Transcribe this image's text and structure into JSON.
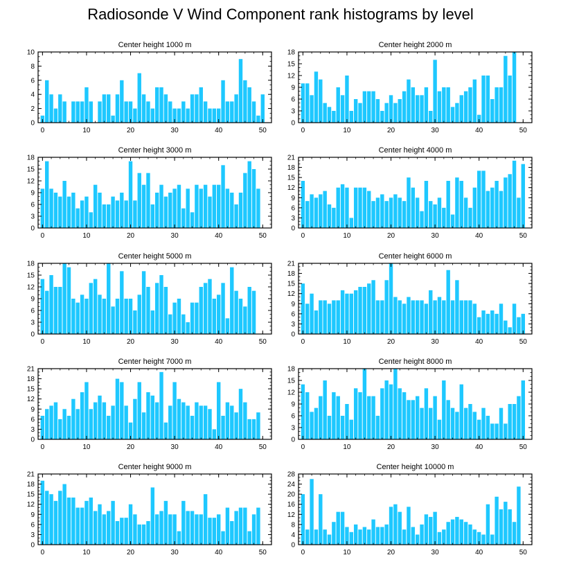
{
  "title": "Radiosonde V Wind Component rank histograms by level",
  "bar_color": "#1ec8ff",
  "chart_data": [
    {
      "type": "bar",
      "title": "Center height 1000 m",
      "xlim": [
        -1,
        52
      ],
      "ylim": [
        0,
        10
      ],
      "yticks": [
        0,
        2,
        4,
        6,
        8,
        10
      ],
      "xticks": [
        0,
        10,
        20,
        30,
        40,
        50
      ],
      "values": [
        1,
        6,
        4,
        2,
        4,
        3,
        0,
        3,
        3,
        3,
        5,
        3,
        0,
        3,
        4,
        4,
        1,
        4,
        6,
        3,
        3,
        2,
        7,
        4,
        3,
        2,
        5,
        5,
        4,
        3,
        2,
        2,
        3,
        2,
        4,
        4,
        5,
        3,
        2,
        2,
        2,
        6,
        3,
        3,
        4,
        9,
        6,
        5,
        3,
        1,
        4
      ]
    },
    {
      "type": "bar",
      "title": "Center height 2000 m",
      "xlim": [
        -1,
        52
      ],
      "ylim": [
        0,
        18
      ],
      "yticks": [
        0,
        3,
        6,
        9,
        12,
        15,
        18
      ],
      "xticks": [
        0,
        10,
        20,
        30,
        40,
        50
      ],
      "values": [
        10,
        10,
        7,
        13,
        11,
        5,
        4,
        3,
        9,
        7,
        12,
        3,
        6,
        5,
        8,
        8,
        8,
        6,
        3,
        5,
        7,
        5,
        6,
        8,
        11,
        9,
        7,
        7,
        9,
        3,
        16,
        8,
        9,
        9,
        4,
        5,
        7,
        8,
        9,
        11,
        2,
        12,
        12,
        6,
        9,
        9,
        17,
        12,
        18
      ]
    },
    {
      "type": "bar",
      "title": "Center height 3000 m",
      "xlim": [
        -1,
        52
      ],
      "ylim": [
        0,
        18
      ],
      "yticks": [
        0,
        3,
        6,
        9,
        12,
        15,
        18
      ],
      "xticks": [
        0,
        10,
        20,
        30,
        40,
        50
      ],
      "values": [
        10,
        17,
        10,
        9,
        8,
        12,
        8,
        9,
        5,
        7,
        8,
        4,
        11,
        9,
        6,
        6,
        8,
        7,
        9,
        7,
        17,
        7,
        14,
        11,
        14,
        6,
        9,
        11,
        8,
        9,
        10,
        11,
        5,
        10,
        4,
        11,
        10,
        11,
        8,
        11,
        11,
        16,
        10,
        9,
        6,
        9,
        14,
        17,
        15,
        10
      ]
    },
    {
      "type": "bar",
      "title": "Center height 4000 m",
      "xlim": [
        -1,
        52
      ],
      "ylim": [
        0,
        21
      ],
      "yticks": [
        0,
        3,
        6,
        9,
        12,
        15,
        18,
        21
      ],
      "xticks": [
        0,
        10,
        20,
        30,
        40,
        50
      ],
      "values": [
        14,
        8,
        10,
        9,
        10,
        11,
        7,
        6,
        12,
        13,
        12,
        3,
        12,
        12,
        12,
        11,
        8,
        9,
        10,
        8,
        9,
        10,
        9,
        8,
        15,
        12,
        9,
        5,
        14,
        8,
        7,
        9,
        6,
        14,
        4,
        15,
        14,
        9,
        6,
        12,
        17,
        17,
        11,
        12,
        14,
        11,
        15,
        16,
        20,
        9,
        19
      ]
    },
    {
      "type": "bar",
      "title": "Center height 5000 m",
      "xlim": [
        -1,
        52
      ],
      "ylim": [
        0,
        18
      ],
      "yticks": [
        0,
        3,
        6,
        9,
        12,
        15,
        18
      ],
      "xticks": [
        0,
        10,
        20,
        30,
        40,
        50
      ],
      "values": [
        14,
        11,
        15,
        12,
        12,
        18,
        17,
        9,
        8,
        10,
        9,
        13,
        14,
        10,
        9,
        18,
        7,
        9,
        16,
        9,
        9,
        6,
        10,
        16,
        12,
        6,
        13,
        15,
        12,
        5,
        8,
        9,
        5,
        3,
        8,
        8,
        12,
        13,
        14,
        9,
        10,
        13,
        4,
        17,
        11,
        9,
        7,
        12,
        11
      ]
    },
    {
      "type": "bar",
      "title": "Center height 6000 m",
      "xlim": [
        -1,
        52
      ],
      "ylim": [
        0,
        21
      ],
      "yticks": [
        0,
        3,
        6,
        9,
        12,
        15,
        18,
        21
      ],
      "xticks": [
        0,
        10,
        20,
        30,
        40,
        50
      ],
      "values": [
        15,
        9,
        12,
        7,
        10,
        10,
        9,
        10,
        10,
        13,
        12,
        12,
        13,
        14,
        14,
        15,
        16,
        10,
        10,
        16,
        21,
        11,
        10,
        9,
        11,
        10,
        10,
        10,
        9,
        13,
        10,
        11,
        10,
        19,
        10,
        16,
        10,
        10,
        10,
        9,
        5,
        7,
        6,
        7,
        6,
        9,
        4,
        2,
        9,
        5,
        6
      ]
    },
    {
      "type": "bar",
      "title": "Center height 7000 m",
      "xlim": [
        -1,
        52
      ],
      "ylim": [
        0,
        21
      ],
      "yticks": [
        0,
        3,
        6,
        9,
        12,
        15,
        18,
        21
      ],
      "xticks": [
        0,
        10,
        20,
        30,
        40,
        50
      ],
      "values": [
        7,
        9,
        10,
        11,
        6,
        9,
        7,
        12,
        9,
        14,
        17,
        9,
        11,
        13,
        11,
        7,
        10,
        18,
        17,
        10,
        5,
        12,
        17,
        8,
        14,
        13,
        11,
        20,
        5,
        10,
        17,
        12,
        11,
        10,
        7,
        11,
        10,
        10,
        9,
        3,
        17,
        7,
        11,
        10,
        8,
        15,
        11,
        6,
        6,
        8
      ]
    },
    {
      "type": "bar",
      "title": "Center height 8000 m",
      "xlim": [
        -1,
        52
      ],
      "ylim": [
        0,
        18
      ],
      "yticks": [
        0,
        3,
        6,
        9,
        12,
        15,
        18
      ],
      "xticks": [
        0,
        10,
        20,
        30,
        40,
        50
      ],
      "values": [
        14,
        12,
        7,
        8,
        11,
        15,
        6,
        12,
        11,
        6,
        9,
        5,
        13,
        12,
        18,
        11,
        11,
        6,
        13,
        15,
        14,
        18,
        13,
        12,
        10,
        10,
        11,
        8,
        13,
        8,
        11,
        5,
        15,
        10,
        8,
        7,
        14,
        8,
        9,
        7,
        5,
        8,
        6,
        4,
        4,
        8,
        4,
        9,
        9,
        11,
        15
      ]
    },
    {
      "type": "bar",
      "title": "Center height 9000 m",
      "xlim": [
        -1,
        52
      ],
      "ylim": [
        0,
        21
      ],
      "yticks": [
        0,
        3,
        6,
        9,
        12,
        15,
        18,
        21
      ],
      "xticks": [
        0,
        10,
        20,
        30,
        40,
        50
      ],
      "values": [
        19,
        16,
        15,
        13,
        16,
        18,
        14,
        14,
        11,
        11,
        13,
        14,
        10,
        12,
        9,
        10,
        13,
        7,
        8,
        8,
        12,
        9,
        6,
        6,
        7,
        17,
        9,
        10,
        13,
        9,
        9,
        4,
        13,
        10,
        10,
        9,
        9,
        15,
        8,
        8,
        9,
        4,
        11,
        7,
        10,
        11,
        11,
        4,
        9,
        11
      ]
    },
    {
      "type": "bar",
      "title": "Center height 10000 m",
      "xlim": [
        -1,
        52
      ],
      "ylim": [
        0,
        28
      ],
      "yticks": [
        0,
        4,
        8,
        12,
        16,
        20,
        24,
        28
      ],
      "xticks": [
        0,
        10,
        20,
        30,
        40,
        50
      ],
      "values": [
        20,
        6,
        26,
        6,
        20,
        6,
        4,
        9,
        13,
        13,
        7,
        5,
        8,
        6,
        7,
        6,
        10,
        7,
        7,
        8,
        15,
        16,
        13,
        6,
        15,
        7,
        4,
        8,
        12,
        11,
        13,
        5,
        6,
        9,
        10,
        11,
        10,
        9,
        8,
        6,
        5,
        4,
        16,
        4,
        19,
        14,
        17,
        14,
        9,
        23
      ]
    }
  ]
}
